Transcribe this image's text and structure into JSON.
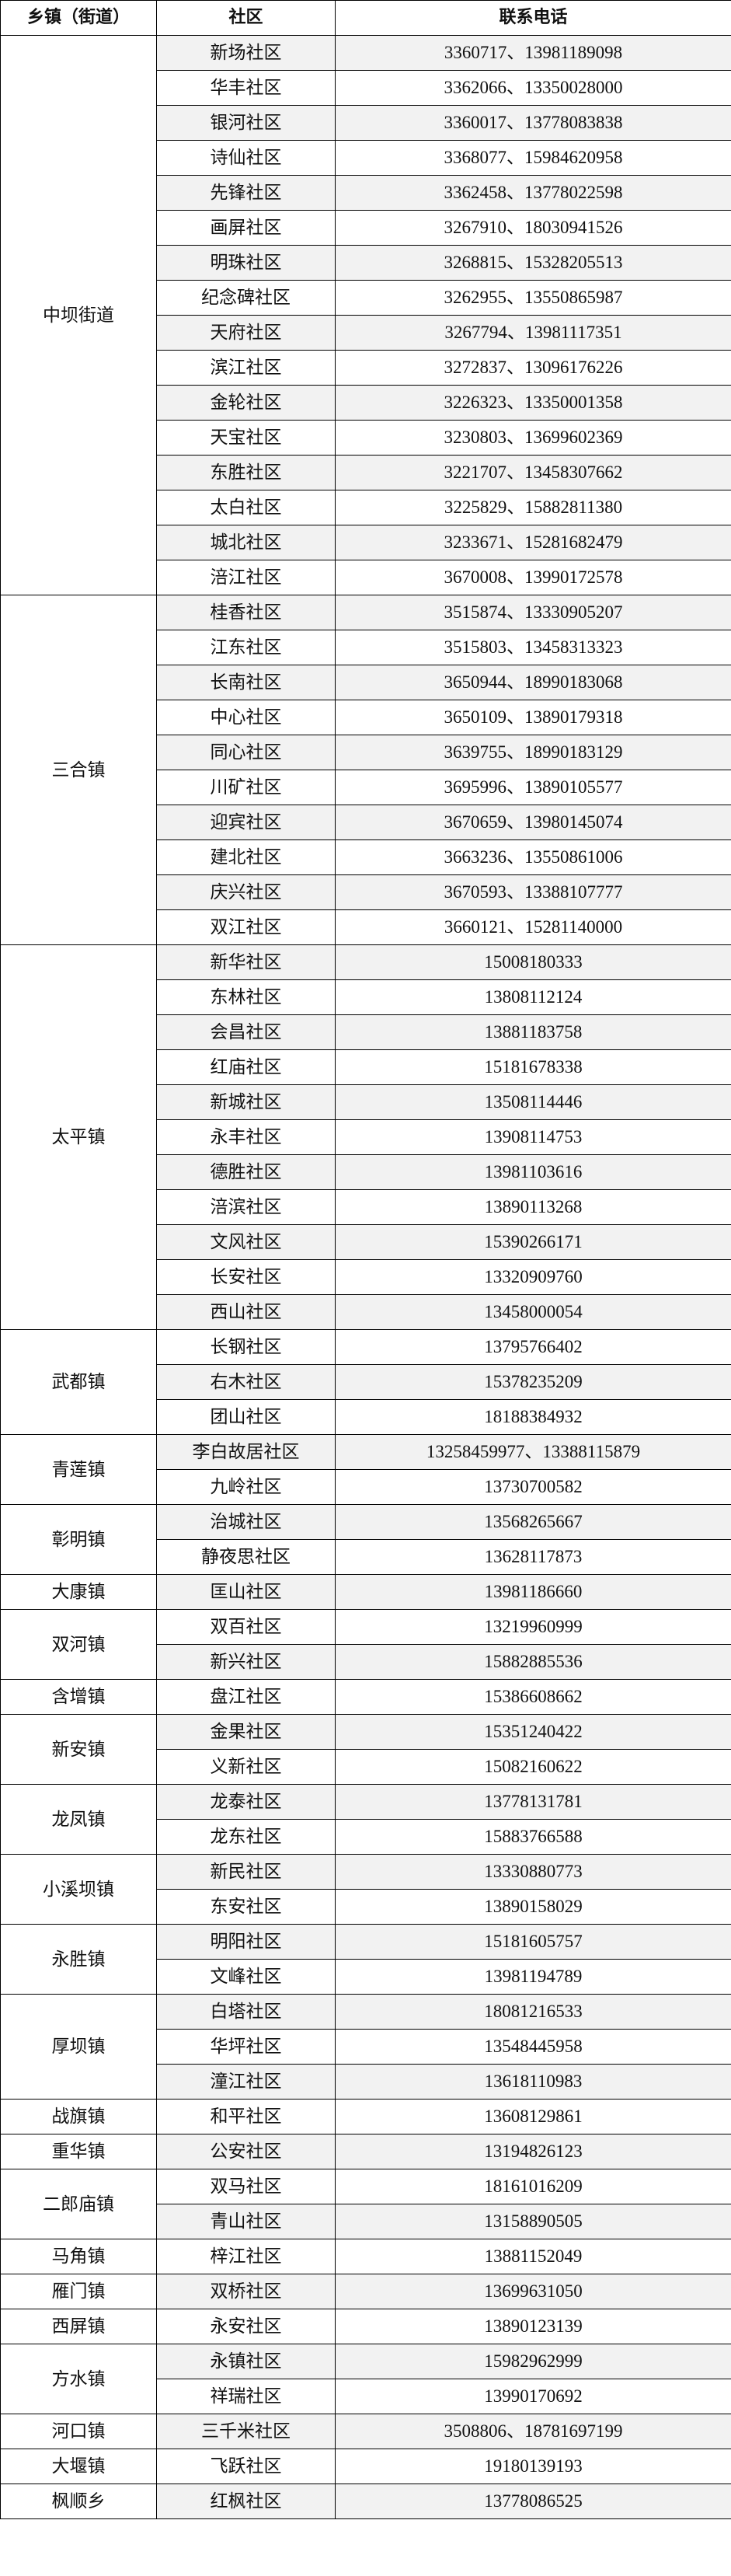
{
  "header": {
    "town": "乡镇（街道）",
    "community": "社区",
    "phone": "联系电话"
  },
  "colors": {
    "row_shade": "#f2f2f2",
    "border": "#000000"
  },
  "groups": [
    {
      "town": "中坝街道",
      "communities": [
        {
          "name": "新场社区",
          "phone": "3360717、13981189098"
        },
        {
          "name": "华丰社区",
          "phone": "3362066、13350028000"
        },
        {
          "name": "银河社区",
          "phone": "3360017、13778083838"
        },
        {
          "name": "诗仙社区",
          "phone": "3368077、15984620958"
        },
        {
          "name": "先锋社区",
          "phone": "3362458、13778022598"
        },
        {
          "name": "画屏社区",
          "phone": "3267910、18030941526"
        },
        {
          "name": "明珠社区",
          "phone": "3268815、15328205513"
        },
        {
          "name": "纪念碑社区",
          "phone": "3262955、13550865987"
        },
        {
          "name": "天府社区",
          "phone": "3267794、13981117351"
        },
        {
          "name": "滨江社区",
          "phone": "3272837、13096176226"
        },
        {
          "name": "金轮社区",
          "phone": "3226323、13350001358"
        },
        {
          "name": "天宝社区",
          "phone": "3230803、13699602369"
        },
        {
          "name": "东胜社区",
          "phone": "3221707、13458307662"
        },
        {
          "name": "太白社区",
          "phone": "3225829、15882811380"
        },
        {
          "name": "城北社区",
          "phone": "3233671、15281682479"
        },
        {
          "name": "涪江社区",
          "phone": "3670008、13990172578"
        }
      ]
    },
    {
      "town": "三合镇",
      "communities": [
        {
          "name": "桂香社区",
          "phone": "3515874、13330905207"
        },
        {
          "name": "江东社区",
          "phone": "3515803、13458313323"
        },
        {
          "name": "长南社区",
          "phone": "3650944、18990183068"
        },
        {
          "name": "中心社区",
          "phone": "3650109、13890179318"
        },
        {
          "name": "同心社区",
          "phone": "3639755、18990183129"
        },
        {
          "name": "川矿社区",
          "phone": "3695996、13890105577"
        },
        {
          "name": "迎宾社区",
          "phone": "3670659、13980145074"
        },
        {
          "name": "建北社区",
          "phone": "3663236、13550861006"
        },
        {
          "name": "庆兴社区",
          "phone": "3670593、13388107777"
        },
        {
          "name": "双江社区",
          "phone": "3660121、15281140000"
        }
      ]
    },
    {
      "town": "太平镇",
      "communities": [
        {
          "name": "新华社区",
          "phone": "15008180333"
        },
        {
          "name": "东林社区",
          "phone": "13808112124"
        },
        {
          "name": "会昌社区",
          "phone": "13881183758"
        },
        {
          "name": "红庙社区",
          "phone": "15181678338"
        },
        {
          "name": "新城社区",
          "phone": "13508114446"
        },
        {
          "name": "永丰社区",
          "phone": "13908114753"
        },
        {
          "name": "德胜社区",
          "phone": "13981103616"
        },
        {
          "name": "涪滨社区",
          "phone": "13890113268"
        },
        {
          "name": "文风社区",
          "phone": "15390266171"
        },
        {
          "name": "长安社区",
          "phone": "13320909760"
        },
        {
          "name": "西山社区",
          "phone": "13458000054"
        }
      ]
    },
    {
      "town": "武都镇",
      "communities": [
        {
          "name": "长钢社区",
          "phone": "13795766402"
        },
        {
          "name": "右木社区",
          "phone": "15378235209"
        },
        {
          "name": "团山社区",
          "phone": "18188384932"
        }
      ]
    },
    {
      "town": "青莲镇",
      "communities": [
        {
          "name": "李白故居社区",
          "phone": "13258459977、13388115879"
        },
        {
          "name": "九岭社区",
          "phone": "13730700582"
        }
      ]
    },
    {
      "town": "彰明镇",
      "communities": [
        {
          "name": "治城社区",
          "phone": "13568265667"
        },
        {
          "name": "静夜思社区",
          "phone": "13628117873"
        }
      ]
    },
    {
      "town": "大康镇",
      "communities": [
        {
          "name": "匡山社区",
          "phone": "13981186660"
        }
      ]
    },
    {
      "town": "双河镇",
      "communities": [
        {
          "name": "双百社区",
          "phone": "13219960999"
        },
        {
          "name": "新兴社区",
          "phone": "15882885536"
        }
      ]
    },
    {
      "town": "含增镇",
      "communities": [
        {
          "name": "盘江社区",
          "phone": "15386608662"
        }
      ]
    },
    {
      "town": "新安镇",
      "communities": [
        {
          "name": "金果社区",
          "phone": "15351240422"
        },
        {
          "name": "义新社区",
          "phone": "15082160622"
        }
      ]
    },
    {
      "town": "龙凤镇",
      "communities": [
        {
          "name": "龙泰社区",
          "phone": "13778131781"
        },
        {
          "name": "龙东社区",
          "phone": "15883766588"
        }
      ]
    },
    {
      "town": "小溪坝镇",
      "communities": [
        {
          "name": "新民社区",
          "phone": "13330880773"
        },
        {
          "name": "东安社区",
          "phone": "13890158029"
        }
      ]
    },
    {
      "town": "永胜镇",
      "communities": [
        {
          "name": "明阳社区",
          "phone": "15181605757"
        },
        {
          "name": "文峰社区",
          "phone": "13981194789"
        }
      ]
    },
    {
      "town": "厚坝镇",
      "communities": [
        {
          "name": "白塔社区",
          "phone": "18081216533"
        },
        {
          "name": "华坪社区",
          "phone": "13548445958"
        },
        {
          "name": "潼江社区",
          "phone": "13618110983"
        }
      ]
    },
    {
      "town": "战旗镇",
      "communities": [
        {
          "name": "和平社区",
          "phone": "13608129861"
        }
      ]
    },
    {
      "town": "重华镇",
      "communities": [
        {
          "name": "公安社区",
          "phone": "13194826123"
        }
      ]
    },
    {
      "town": "二郎庙镇",
      "communities": [
        {
          "name": "双马社区",
          "phone": "18161016209"
        },
        {
          "name": "青山社区",
          "phone": "13158890505"
        }
      ]
    },
    {
      "town": "马角镇",
      "communities": [
        {
          "name": "梓江社区",
          "phone": "13881152049"
        }
      ]
    },
    {
      "town": "雁门镇",
      "communities": [
        {
          "name": "双桥社区",
          "phone": "13699631050"
        }
      ]
    },
    {
      "town": "西屏镇",
      "communities": [
        {
          "name": "永安社区",
          "phone": "13890123139"
        }
      ]
    },
    {
      "town": "方水镇",
      "communities": [
        {
          "name": "永镇社区",
          "phone": "15982962999"
        },
        {
          "name": "祥瑞社区",
          "phone": "13990170692"
        }
      ]
    },
    {
      "town": "河口镇",
      "communities": [
        {
          "name": "三千米社区",
          "phone": "3508806、18781697199"
        }
      ]
    },
    {
      "town": "大堰镇",
      "communities": [
        {
          "name": "飞跃社区",
          "phone": "19180139193"
        }
      ]
    },
    {
      "town": "枫顺乡",
      "communities": [
        {
          "name": "红枫社区",
          "phone": "13778086525"
        }
      ]
    }
  ]
}
